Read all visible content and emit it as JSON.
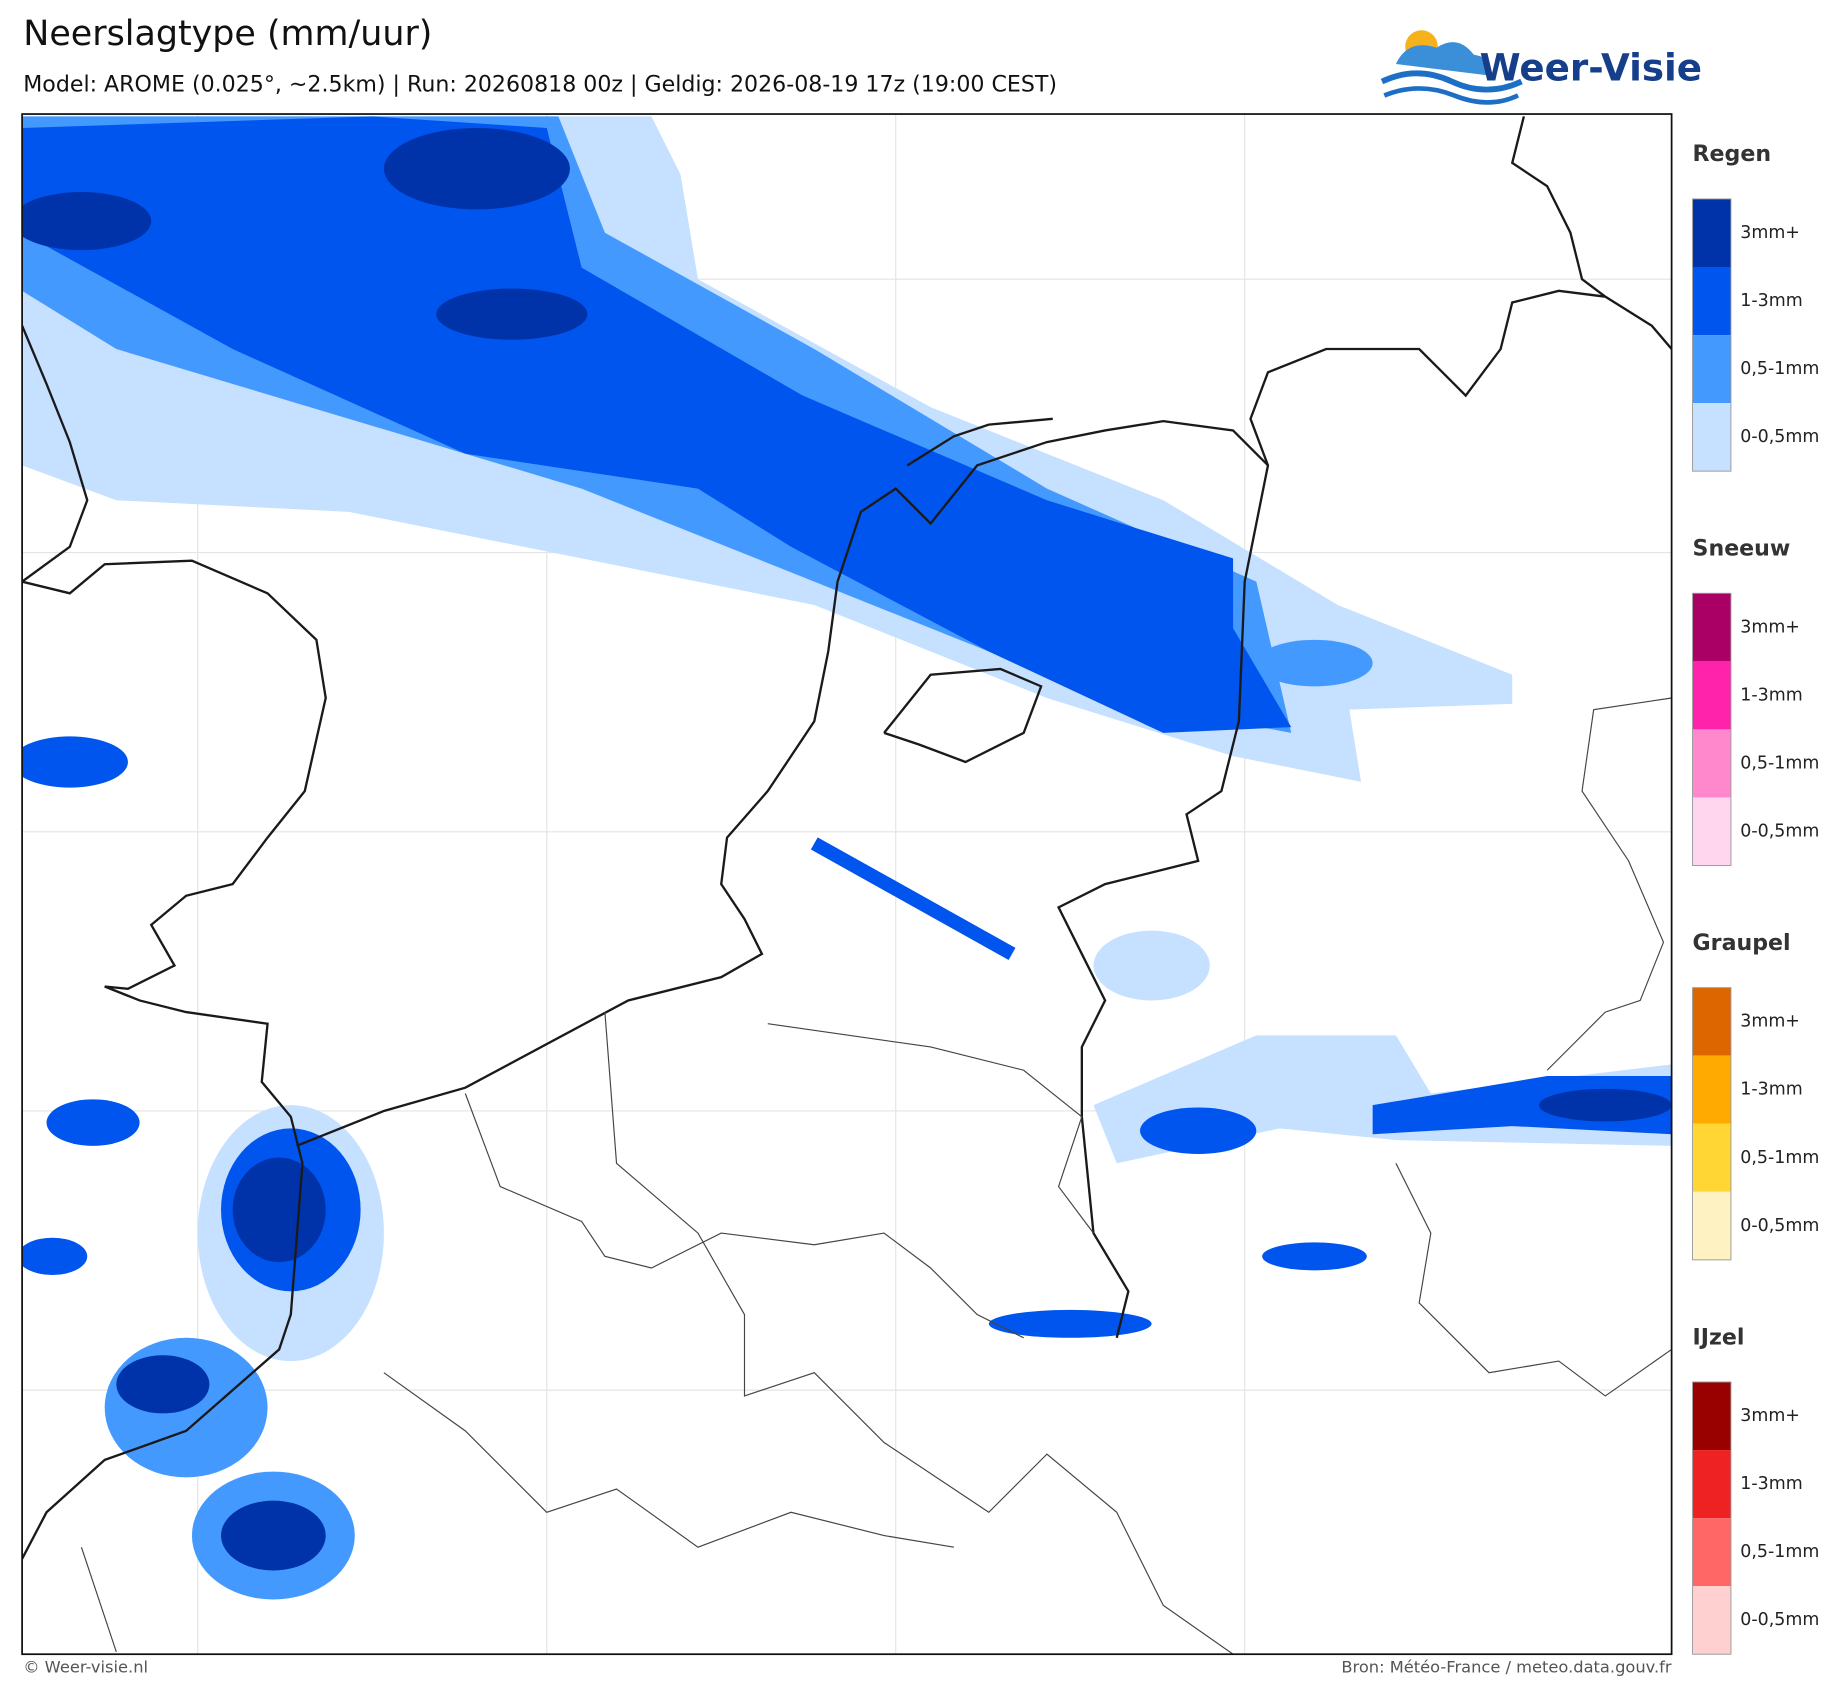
{
  "header": {
    "title": "Neerslagtype (mm/uur)",
    "subtitle": "Model: AROME (0.025°, ~2.5km)  |  Run: 20260818 00z  |  Geldig: 2026-08-19 17z (19:00 CEST)",
    "logo": "Weer-Visie"
  },
  "legend": [
    {
      "name": "Regen",
      "colors": [
        "#0033aa",
        "#0055ee",
        "#4499ff",
        "#c6e0ff"
      ],
      "labels": [
        "3mm+",
        "1-3mm",
        "0,5-1mm",
        "0-0,5mm"
      ]
    },
    {
      "name": "Sneeuw",
      "colors": [
        "#aa0066",
        "#ff22aa",
        "#ff88cc",
        "#ffd6ee"
      ],
      "labels": [
        "3mm+",
        "1-3mm",
        "0,5-1mm",
        "0-0,5mm"
      ]
    },
    {
      "name": "Graupel",
      "colors": [
        "#dd6600",
        "#ffaa00",
        "#ffd633",
        "#fff2c2"
      ],
      "labels": [
        "3mm+",
        "1-3mm",
        "0,5-1mm",
        "0-0,5mm"
      ]
    },
    {
      "name": "IJzel",
      "colors": [
        "#990000",
        "#ee2222",
        "#ff6666",
        "#ffd0d0"
      ],
      "labels": [
        "3mm+",
        "1-3mm",
        "0,5-1mm",
        "0-0,5mm"
      ]
    }
  ],
  "footer": {
    "left": "© Weer-visie.nl",
    "right": "Bron: Météo-France / meteo.data.gouv.fr"
  }
}
